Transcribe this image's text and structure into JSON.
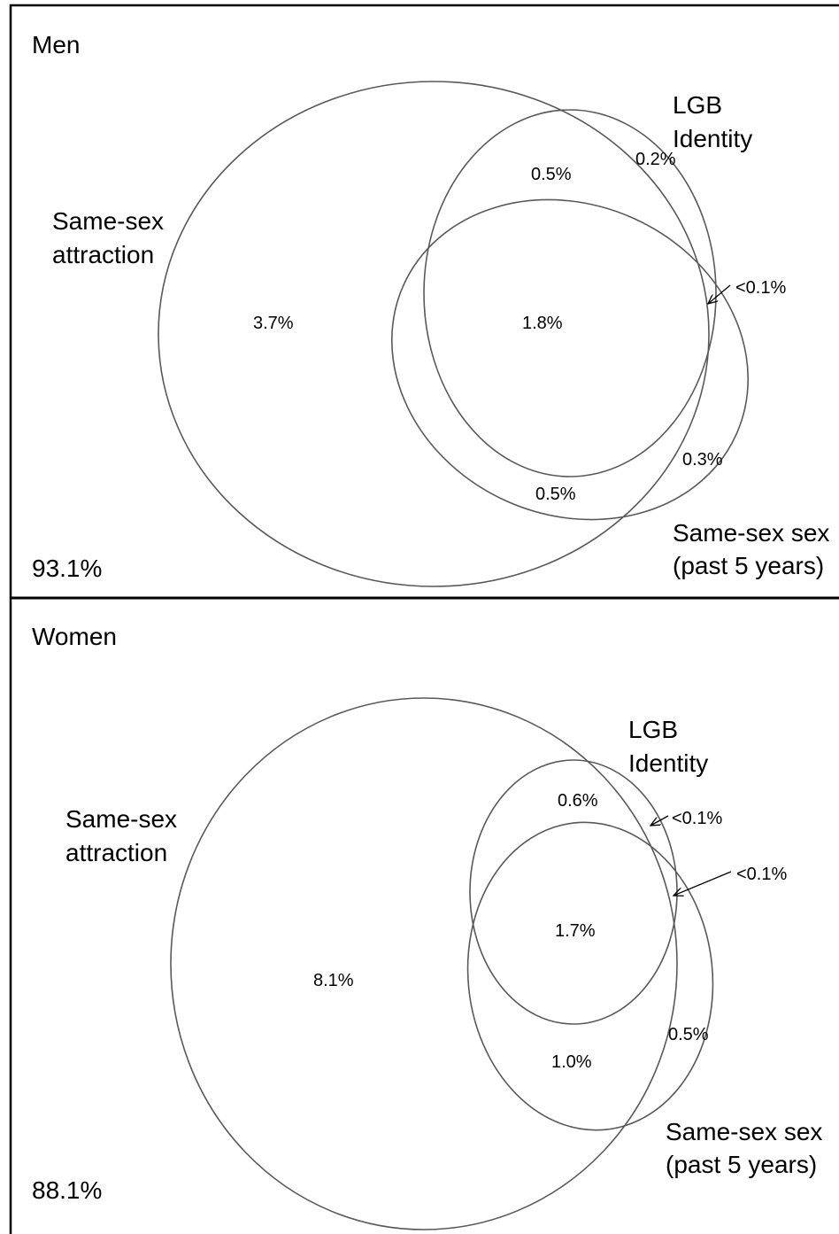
{
  "panels": {
    "men": {
      "title": "Men",
      "outside_value": "93.1%",
      "sets": {
        "attraction": [
          "Same-sex",
          "attraction"
        ],
        "identity": [
          "LGB",
          "Identity"
        ],
        "behavior": [
          "Same-sex sex",
          "(past 5 years)"
        ]
      },
      "regions": {
        "attraction_only": "3.7%",
        "attraction_identity": "0.5%",
        "identity_only": "0.2%",
        "all_three": "1.8%",
        "identity_behavior": "<0.1%",
        "behavior_only": "0.3%",
        "attraction_behavior": "0.5%"
      }
    },
    "women": {
      "title": "Women",
      "outside_value": "88.1%",
      "sets": {
        "attraction": [
          "Same-sex",
          "attraction"
        ],
        "identity": [
          "LGB",
          "Identity"
        ],
        "behavior": [
          "Same-sex sex",
          "(past 5 years)"
        ]
      },
      "regions": {
        "attraction_only": "8.1%",
        "attraction_identity": "0.6%",
        "identity_only": "<0.1%",
        "all_three": "1.7%",
        "identity_behavior": "<0.1%",
        "behavior_only": "0.5%",
        "attraction_behavior": "1.0%"
      }
    }
  }
}
